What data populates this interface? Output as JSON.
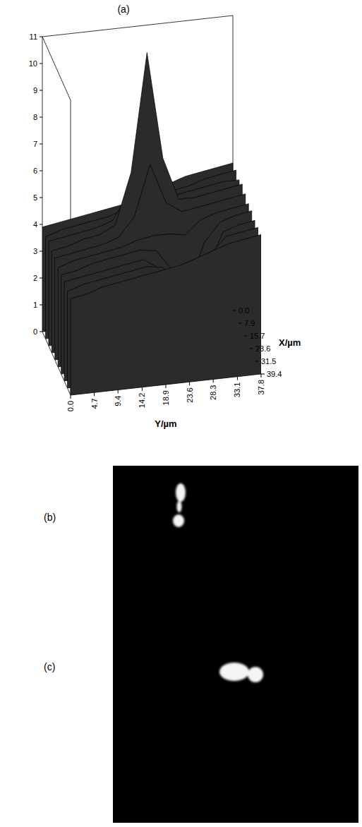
{
  "chart_data": {
    "type": "surface",
    "panel_label": "(a)",
    "x_label": "X/µm",
    "y_label": "Y/µm",
    "xlim": [
      0,
      39.4
    ],
    "xticks": [
      {
        "value": 0,
        "label": "0.0"
      },
      7.9,
      15.7,
      23.6,
      31.5,
      39.4
    ],
    "ylim": [
      0,
      37.8
    ],
    "yticks": [
      {
        "value": 0,
        "label": "0.0"
      },
      4.7,
      9.4,
      14.2,
      18.9,
      23.6,
      28.3,
      33.1,
      37.8
    ],
    "zlim": [
      0,
      11
    ],
    "zticks": [
      0,
      1,
      2,
      3,
      4,
      5,
      6,
      7,
      8,
      9,
      10,
      11
    ],
    "color": "#2b2b2b",
    "x": [
      0,
      4.4,
      8.8,
      13.1,
      17.5,
      21.9,
      26.3,
      30.6,
      35.0,
      39.4
    ],
    "y": [
      0,
      3.15,
      6.3,
      9.45,
      12.6,
      15.75,
      18.9,
      22.05,
      25.2,
      28.35,
      31.5,
      34.65,
      37.8
    ],
    "z": [
      [
        3.9,
        4.0,
        4.1,
        4.2,
        4.3,
        4.4,
        4.6,
        4.8,
        5.0,
        5.2,
        5.3,
        5.4,
        5.5
      ],
      [
        3.8,
        4.0,
        4.1,
        4.2,
        4.3,
        4.5,
        4.9,
        4.9,
        5.0,
        5.1,
        5.3,
        5.4,
        5.5
      ],
      [
        3.9,
        4.0,
        4.1,
        4.2,
        4.4,
        5.3,
        8.2,
        5.6,
        5.1,
        5.2,
        5.3,
        5.4,
        5.4
      ],
      [
        3.8,
        3.9,
        4.1,
        4.2,
        4.5,
        6.4,
        10.8,
        6.8,
        5.2,
        5.2,
        5.3,
        5.4,
        5.5
      ],
      [
        3.8,
        3.9,
        4.0,
        4.1,
        4.3,
        5.0,
        6.9,
        5.4,
        5.0,
        5.1,
        5.2,
        5.3,
        5.4
      ],
      [
        3.7,
        3.9,
        4.0,
        4.1,
        4.2,
        4.4,
        4.5,
        4.5,
        4.4,
        4.9,
        5.1,
        5.2,
        5.3
      ],
      [
        3.7,
        3.8,
        4.0,
        4.1,
        4.2,
        4.3,
        4.2,
        3.4,
        2.6,
        4.3,
        5.0,
        5.2,
        5.3
      ],
      [
        3.7,
        3.8,
        3.9,
        4.0,
        4.1,
        4.2,
        3.8,
        2.0,
        1.0,
        3.6,
        4.9,
        5.1,
        5.2
      ],
      [
        3.6,
        3.8,
        3.9,
        4.0,
        4.1,
        4.2,
        4.1,
        3.5,
        3.0,
        4.4,
        5.0,
        5.1,
        5.2
      ],
      [
        3.6,
        3.7,
        3.9,
        4.0,
        4.1,
        4.2,
        4.3,
        4.4,
        4.6,
        4.8,
        5.0,
        5.1,
        5.2
      ]
    ]
  },
  "images": [
    {
      "label": "(b)"
    },
    {
      "label": "(c)"
    }
  ]
}
